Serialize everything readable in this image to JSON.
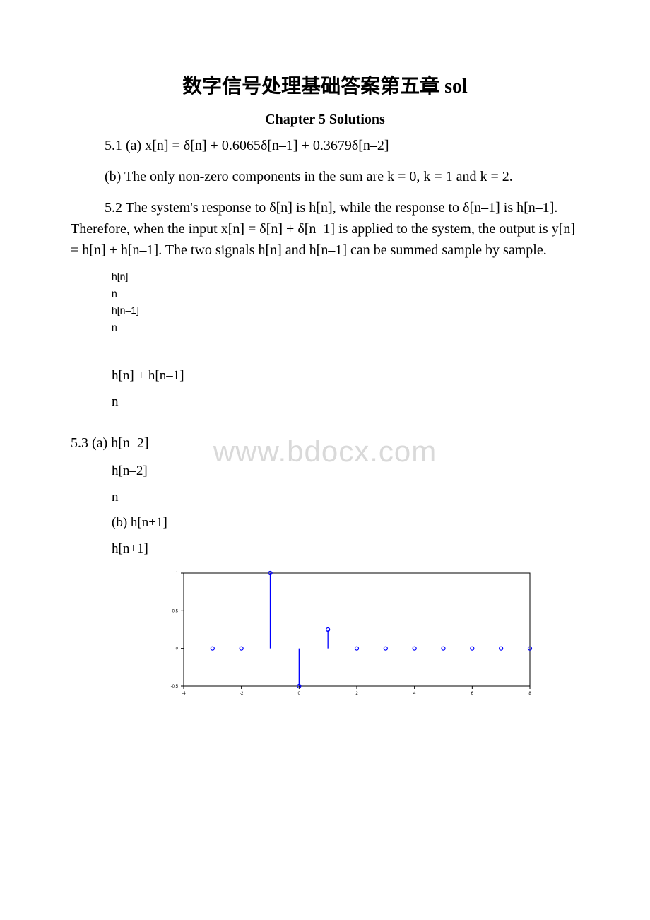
{
  "title": "数字信号处理基础答案第五章 sol",
  "subtitle": "Chapter 5 Solutions",
  "p1": "5.1 (a) x[n] = δ[n] + 0.6065δ[n–1] + 0.3679δ[n–2]",
  "p2": "(b) The only non-zero components in the sum are k = 0, k = 1 and k = 2.",
  "p3": "5.2 The system's response to δ[n] is h[n], while the response to δ[n–1] is h[n–1]. Therefore, when the input x[n] = δ[n] + δ[n–1] is applied to the system, the output is y[n] = h[n] + h[n–1]. The two signals h[n] and h[n–1] can be summed sample by sample.",
  "labels": {
    "hn": "h[n]",
    "n": "n",
    "hnm1": "h[n–1]",
    "sum": "h[n] + h[n–1]",
    "p53a": "5.3 (a) h[n–2]",
    "hnm2": "h[n–2]",
    "p53b": "(b) h[n+1]",
    "hnp1": "h[n+1]"
  },
  "watermark": "www.bdocx.com",
  "chart": {
    "type": "stem",
    "background_color": "#ffffff",
    "axis_color": "#000000",
    "marker_color": "#0000ff",
    "stem_color": "#0000ff",
    "marker_style": "circle-open",
    "marker_size": 5,
    "line_width": 1.3,
    "xlim": [
      -4,
      8
    ],
    "ylim": [
      -0.5,
      1.0
    ],
    "xticks": [
      -4,
      -2,
      0,
      2,
      4,
      6,
      8
    ],
    "yticks": [
      -0.5,
      0,
      0.5,
      1
    ],
    "ytick_labels": [
      "-0.5",
      "0",
      "0.5",
      "1"
    ],
    "tick_fontsize": 6,
    "x": [
      -3,
      -2,
      -1,
      0,
      1,
      2,
      3,
      4,
      5,
      6,
      7,
      8
    ],
    "y": [
      0,
      0,
      1,
      -0.5,
      0.25,
      0,
      0,
      0,
      0,
      0,
      0,
      0
    ]
  }
}
